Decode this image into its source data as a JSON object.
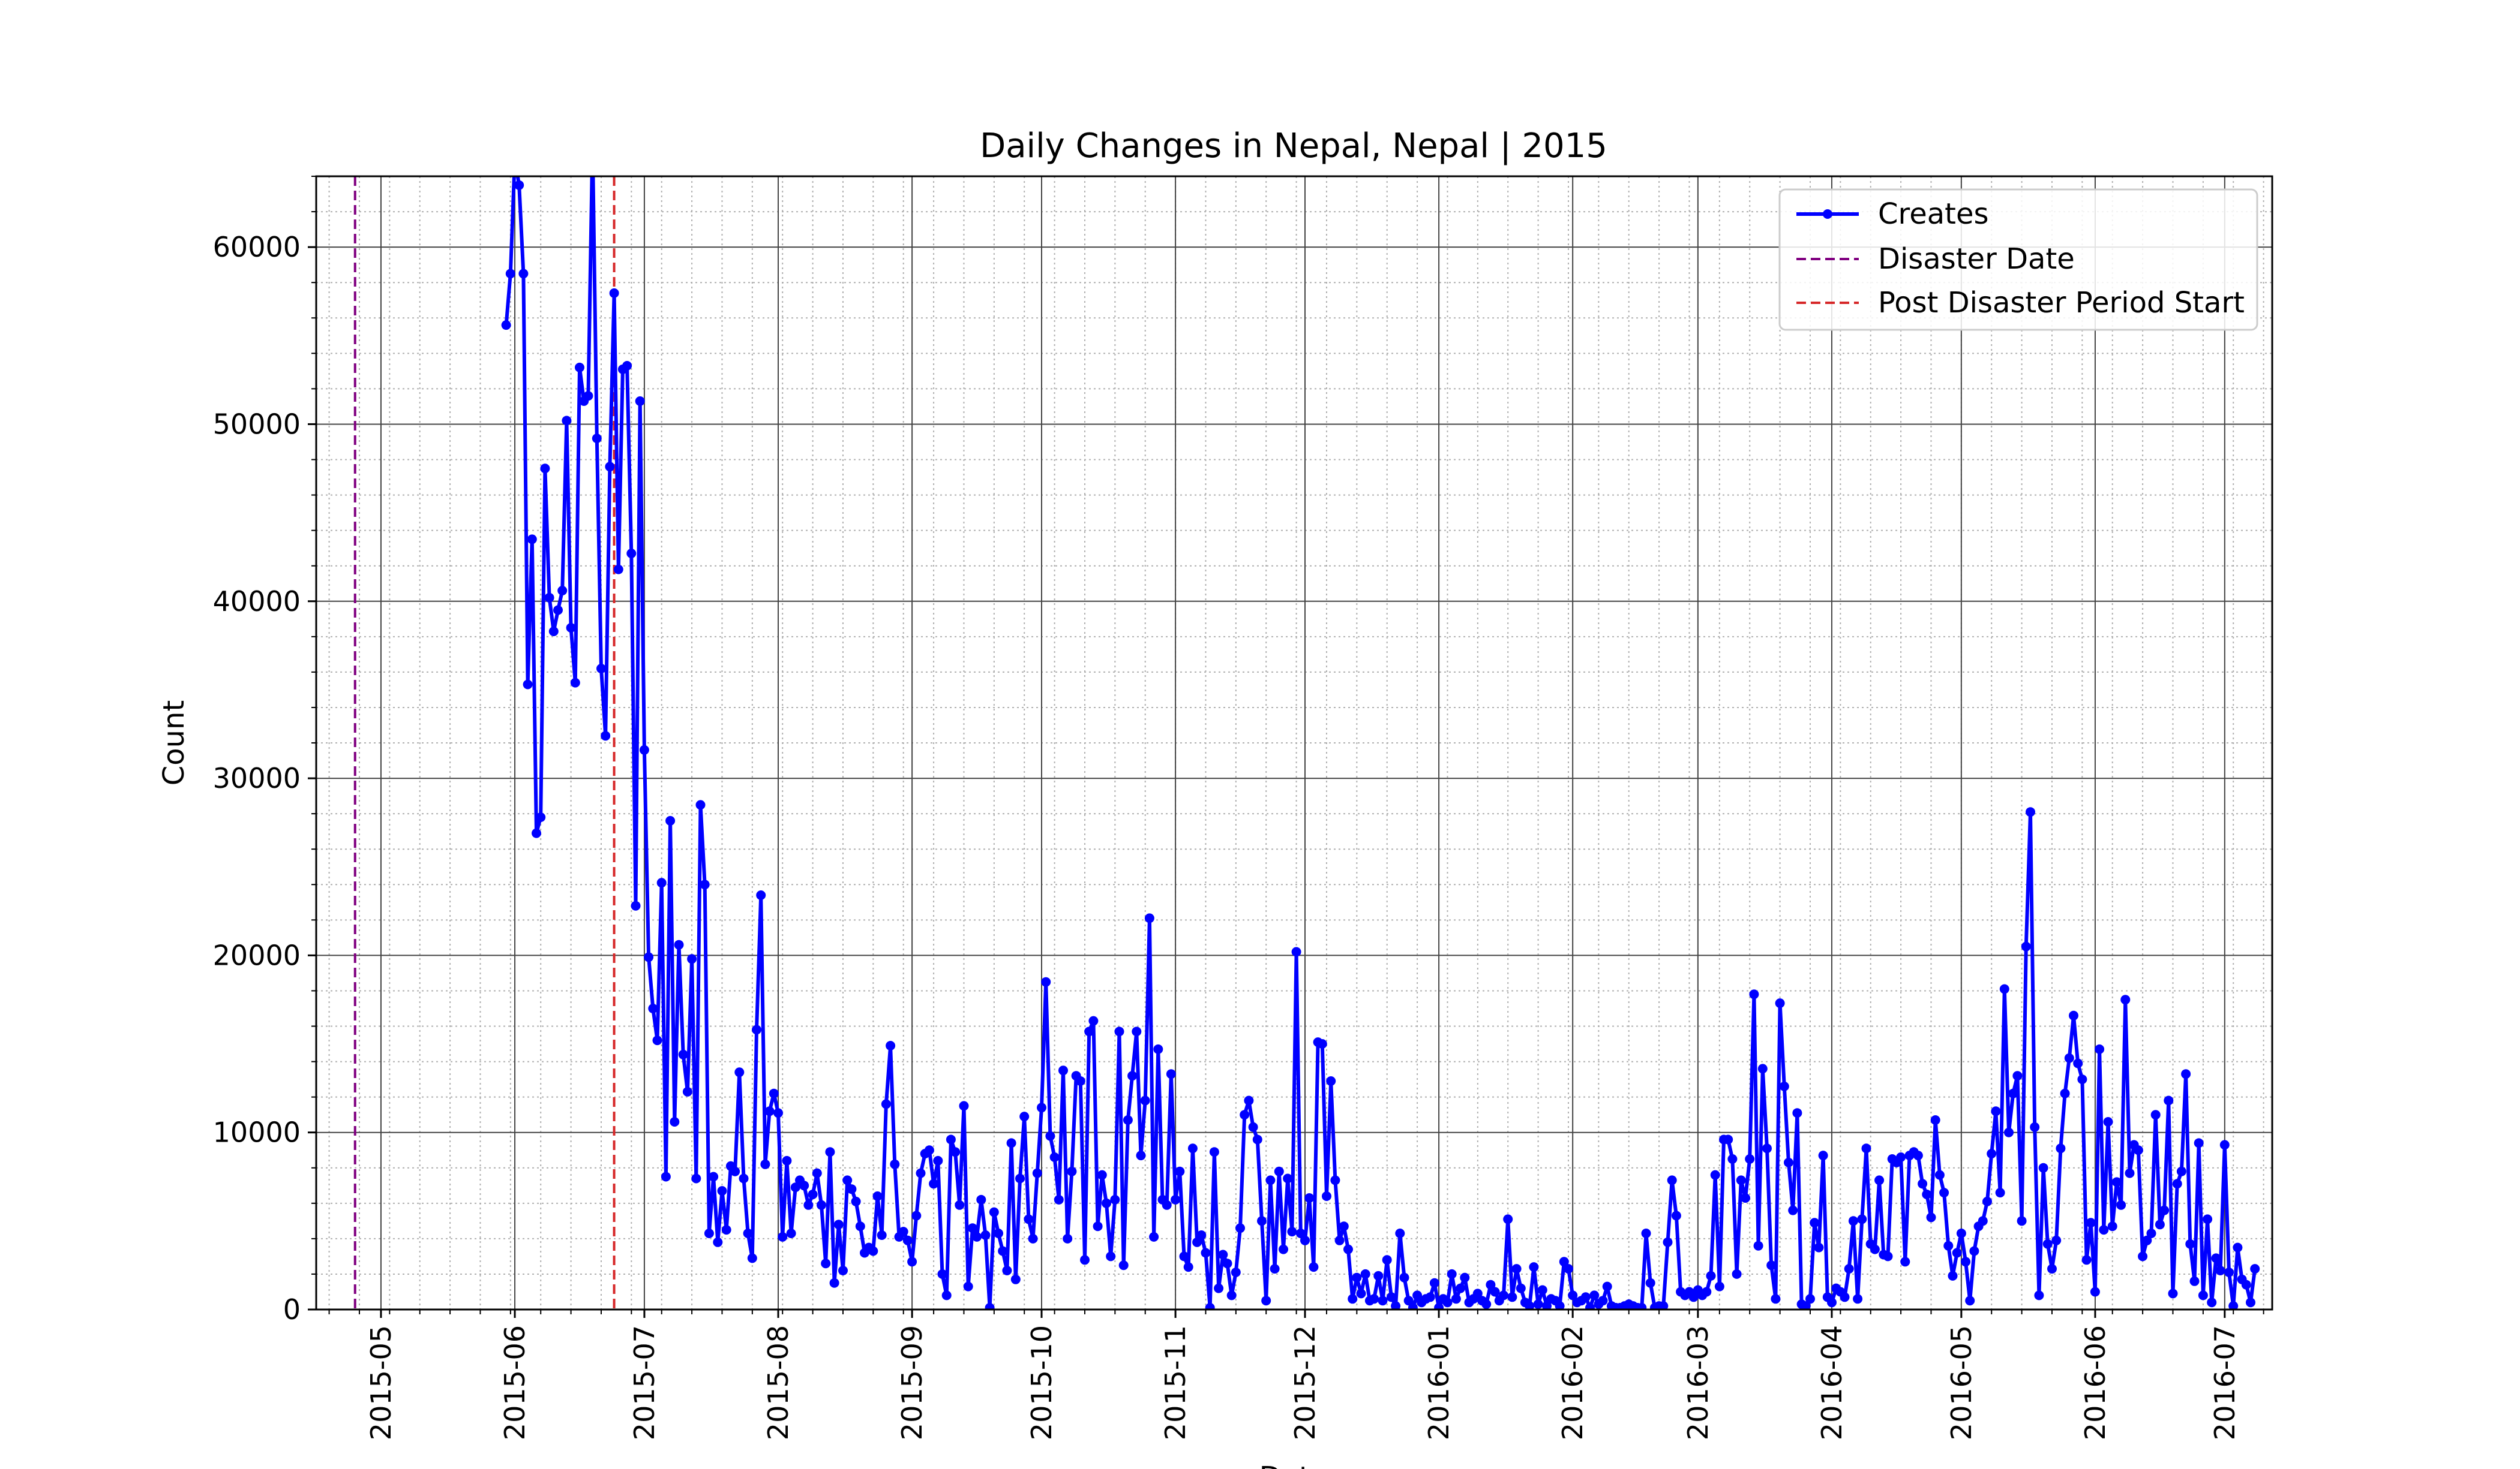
{
  "chart_data": {
    "type": "line",
    "title": "Daily Changes in Nepal, Nepal | 2015",
    "xlabel": "Date",
    "ylabel": "Count",
    "x_axis": "date",
    "xlim": [
      "2015-04-16",
      "2016-07-12"
    ],
    "ylim": [
      0,
      64000
    ],
    "y_ticks": [
      0,
      10000,
      20000,
      30000,
      40000,
      50000,
      60000
    ],
    "x_tick_labels": [
      "2015-05",
      "2015-06",
      "2015-07",
      "2015-08",
      "2015-09",
      "2015-10",
      "2015-11",
      "2015-12",
      "2016-01",
      "2016-02",
      "2016-03",
      "2016-04",
      "2016-05",
      "2016-06",
      "2016-07"
    ],
    "x_tick_dates": [
      "2015-05-01",
      "2015-06-01",
      "2015-07-01",
      "2015-08-01",
      "2015-09-01",
      "2015-10-01",
      "2015-11-01",
      "2015-12-01",
      "2016-01-01",
      "2016-02-01",
      "2016-03-01",
      "2016-04-01",
      "2016-05-01",
      "2016-06-01",
      "2016-07-01"
    ],
    "grid": true,
    "minor_grid": true,
    "legend_position": "top-right",
    "vlines": [
      {
        "name": "Disaster Date",
        "date": "2015-04-25",
        "color": "#800080",
        "style": "dashed"
      },
      {
        "name": "Post Disaster Period Start",
        "date": "2015-06-24",
        "color": "#d62728",
        "style": "dashed"
      }
    ],
    "series": [
      {
        "name": "Creates",
        "color": "#0000ff",
        "start_date": "2015-05-30",
        "values": [
          55600,
          58500,
          65000,
          63500,
          58500,
          35300,
          43500,
          26900,
          27800,
          47500,
          40200,
          38300,
          39500,
          40600,
          50200,
          38500,
          35400,
          53200,
          51300,
          51600,
          66000,
          49200,
          36200,
          32400,
          47600,
          57400,
          41800,
          53100,
          53300,
          42700,
          22800,
          51300,
          31600,
          19900,
          17000,
          15200,
          24100,
          7500,
          27600,
          10600,
          20600,
          14400,
          12300,
          19800,
          7400,
          28500,
          24000,
          4300,
          7500,
          3800,
          6700,
          4500,
          8100,
          7800,
          13400,
          7400,
          4300,
          2900,
          15800,
          23400,
          8200,
          11200,
          12200,
          11100,
          4100,
          8400,
          4300,
          6900,
          7300,
          7000,
          5900,
          6500,
          7700,
          5900,
          2600,
          8900,
          1500,
          4800,
          2200,
          7300,
          6800,
          6100,
          4700,
          3200,
          3500,
          3300,
          6400,
          4200,
          11600,
          14900,
          8200,
          4100,
          4400,
          3900,
          2700,
          5300,
          7700,
          8800,
          9000,
          7100,
          8400,
          2000,
          800,
          9600,
          8900,
          5900,
          11500,
          1300,
          4600,
          4100,
          6200,
          4200,
          100,
          5500,
          4300,
          3300,
          2200,
          9400,
          1700,
          7400,
          10900,
          5100,
          4000,
          7700,
          11400,
          18500,
          9800,
          8600,
          6200,
          13500,
          4000,
          7800,
          13200,
          12900,
          2800,
          15700,
          16300,
          4700,
          7600,
          6000,
          3000,
          6200,
          15700,
          2500,
          10700,
          13200,
          15700,
          8700,
          11800,
          22100,
          4100,
          14700,
          6200,
          5900,
          13300,
          6200,
          7800,
          3000,
          2400,
          9100,
          3800,
          4200,
          3200,
          100,
          8900,
          1200,
          3100,
          2600,
          800,
          2100,
          4600,
          11000,
          11800,
          10300,
          9600,
          5000,
          500,
          7300,
          2300,
          7800,
          3400,
          7400,
          4400,
          20200,
          4300,
          3900,
          6300,
          2400,
          15100,
          15000,
          6400,
          12900,
          7300,
          3900,
          4700,
          3400,
          600,
          1800,
          900,
          2000,
          500,
          600,
          1900,
          500,
          2800,
          700,
          200,
          4300,
          1800,
          500,
          100,
          800,
          400,
          600,
          700,
          1500,
          100,
          600,
          400,
          2000,
          600,
          1200,
          1800,
          400,
          600,
          900,
          500,
          300,
          1400,
          1000,
          500,
          800,
          5100,
          700,
          2300,
          1200,
          400,
          200,
          2400,
          300,
          1100,
          200,
          600,
          500,
          200,
          2700,
          2300,
          800,
          400,
          500,
          700,
          100,
          800,
          300,
          500,
          1300,
          200,
          100,
          100,
          200,
          300,
          200,
          100,
          100,
          4300,
          1500,
          100,
          200,
          200,
          3800,
          7300,
          5300,
          1000,
          800,
          1000,
          700,
          1100,
          800,
          1000,
          1900,
          7600,
          1300,
          9600,
          9600,
          8500,
          2000,
          7300,
          6300,
          8500,
          17800,
          3600,
          13600,
          9100,
          2500,
          600,
          17300,
          12600,
          8300,
          5600,
          11100,
          300,
          200,
          600,
          4900,
          3500,
          8700,
          700,
          400,
          1200,
          1000,
          700,
          2300,
          5000,
          600,
          5100,
          9100,
          3700,
          3400,
          7300,
          3100,
          3000,
          8500,
          8300,
          8600,
          2700,
          8700,
          8900,
          8700,
          7100,
          6500,
          5200,
          10700,
          7600,
          6600,
          3600,
          1900,
          3200,
          4300,
          2700,
          500,
          3300,
          4700,
          5000,
          6100,
          8800,
          11200,
          6600,
          18100,
          10000,
          12200,
          13200,
          5000,
          20500,
          28100,
          10300,
          800,
          8000,
          3700,
          2300,
          3900,
          9100,
          12200,
          14200,
          16600,
          13900,
          13000,
          2800,
          4900,
          1000,
          14700,
          4500,
          10600,
          4700,
          7200,
          5900,
          17500,
          7700,
          9300,
          9000,
          3000,
          3900,
          4300,
          11000,
          4800,
          5600,
          11800,
          900,
          7100,
          7800,
          13300,
          3700,
          1600,
          9400,
          800,
          5100,
          400,
          2900,
          2200,
          9300,
          2100,
          200,
          3500,
          1700,
          1400,
          400,
          2300
        ]
      }
    ]
  }
}
